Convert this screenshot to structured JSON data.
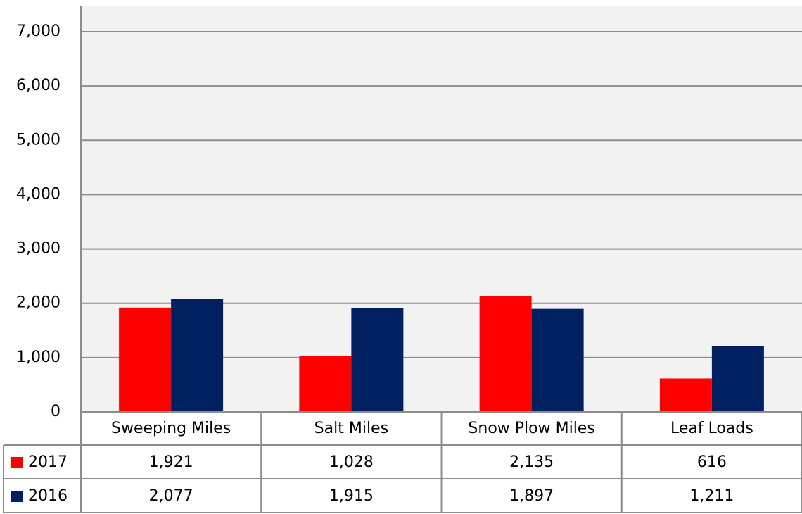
{
  "chart_data": {
    "type": "bar",
    "categories": [
      "Sweeping Miles",
      "Salt Miles",
      "Snow Plow Miles",
      "Leaf Loads"
    ],
    "series": [
      {
        "name": "2017",
        "color": "#ff0000",
        "values": [
          1921,
          1028,
          2135,
          616
        ],
        "value_labels": [
          "1,921",
          "1,028",
          "2,135",
          "616"
        ]
      },
      {
        "name": "2016",
        "color": "#002060",
        "values": [
          2077,
          1915,
          1897,
          1211
        ],
        "value_labels": [
          "2,077",
          "1,915",
          "1,897",
          "1,211"
        ]
      }
    ],
    "ylim": [
      0,
      7000
    ],
    "yticks": [
      0,
      {
        "value": 1000,
        "label": "1,000"
      },
      {
        "value": 2000,
        "label": "2,000"
      },
      {
        "value": 3000,
        "label": "3,000"
      },
      {
        "value": 4000,
        "label": "4,000"
      },
      {
        "value": 5000,
        "label": "5,000"
      },
      {
        "value": 6000,
        "label": "6,000"
      },
      {
        "value": 7000,
        "label": "7,000"
      }
    ],
    "grid": true
  }
}
